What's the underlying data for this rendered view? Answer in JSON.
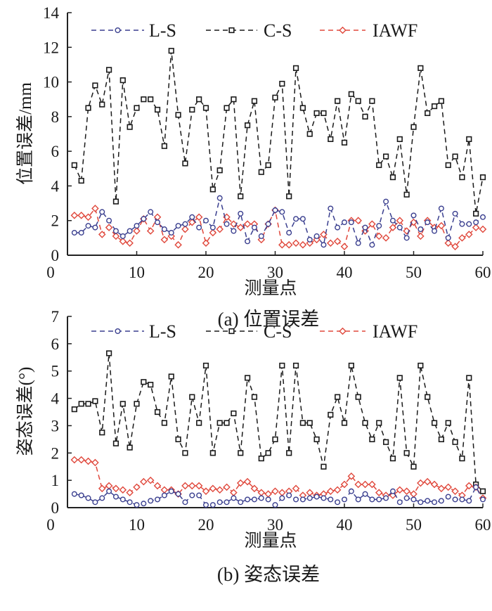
{
  "chart_data": [
    {
      "type": "line",
      "caption": "(a) 位置误差",
      "xlabel": "测量点",
      "ylabel": "位置误差/mm",
      "xlim": [
        0,
        60
      ],
      "ylim": [
        0,
        14
      ],
      "xticks": [
        0,
        10,
        20,
        30,
        40,
        50,
        60
      ],
      "yticks": [
        0,
        2,
        4,
        6,
        8,
        10,
        12,
        14
      ],
      "grid": false,
      "legend": "top",
      "x": [
        1,
        2,
        3,
        4,
        5,
        6,
        7,
        8,
        9,
        10,
        11,
        12,
        13,
        14,
        15,
        16,
        17,
        18,
        19,
        20,
        21,
        22,
        23,
        24,
        25,
        26,
        27,
        28,
        29,
        30,
        31,
        32,
        33,
        34,
        35,
        36,
        37,
        38,
        39,
        40,
        41,
        42,
        43,
        44,
        45,
        46,
        47,
        48,
        49,
        50,
        51,
        52,
        53,
        54,
        55,
        56,
        57,
        58,
        59,
        60
      ],
      "series": [
        {
          "name": "L-S",
          "color": "#3a3f8f",
          "marker": "circle",
          "values": [
            1.3,
            1.3,
            1.7,
            1.6,
            2.5,
            2.0,
            1.4,
            1.1,
            1.4,
            1.7,
            2.1,
            2.5,
            1.9,
            1.5,
            1.3,
            1.7,
            1.8,
            2.2,
            1.6,
            2.0,
            1.6,
            3.3,
            1.8,
            1.4,
            2.4,
            0.8,
            1.6,
            1.1,
            1.8,
            2.6,
            2.5,
            1.3,
            2.1,
            2.1,
            0.9,
            1.1,
            0.6,
            2.7,
            1.6,
            1.9,
            1.9,
            0.7,
            1.6,
            0.6,
            1.7,
            3.1,
            2.0,
            1.6,
            1.0,
            2.3,
            1.5,
            1.9,
            1.4,
            2.7,
            1.0,
            2.4,
            1.8,
            1.8,
            1.9,
            2.2
          ]
        },
        {
          "name": "C-S",
          "color": "#1a1a1a",
          "marker": "square",
          "values": [
            5.2,
            4.3,
            8.5,
            9.8,
            8.7,
            10.7,
            3.1,
            10.1,
            7.4,
            8.5,
            9.0,
            9.0,
            8.4,
            6.3,
            11.8,
            8.1,
            5.3,
            8.4,
            9.0,
            8.5,
            3.8,
            4.9,
            8.5,
            9.0,
            3.4,
            7.5,
            8.9,
            4.8,
            5.2,
            9.1,
            9.9,
            3.4,
            10.8,
            8.5,
            7.0,
            8.2,
            8.2,
            6.7,
            8.9,
            6.5,
            9.3,
            8.9,
            8.0,
            8.9,
            5.2,
            5.7,
            4.5,
            6.7,
            3.5,
            7.4,
            10.8,
            8.2,
            8.6,
            8.9,
            5.2,
            5.7,
            4.5,
            6.7,
            2.4,
            4.5
          ]
        },
        {
          "name": "IAWF",
          "color": "#e0483c",
          "marker": "diamond",
          "values": [
            2.3,
            2.3,
            2.2,
            2.7,
            1.2,
            1.6,
            1.1,
            0.8,
            0.7,
            1.4,
            2.1,
            1.4,
            2.2,
            0.9,
            1.1,
            0.6,
            1.5,
            1.9,
            2.2,
            0.7,
            1.3,
            1.5,
            2.2,
            1.8,
            1.6,
            1.8,
            1.8,
            0.9,
            1.8,
            2.6,
            0.6,
            0.6,
            0.7,
            0.6,
            0.7,
            0.9,
            1.2,
            0.7,
            0.8,
            0.5,
            2.0,
            2.0,
            1.4,
            1.8,
            1.1,
            1.0,
            1.6,
            2.0,
            1.4,
            1.9,
            1.1,
            2.0,
            1.6,
            1.7,
            0.7,
            0.5,
            1.0,
            1.2,
            1.6,
            1.5
          ]
        }
      ]
    },
    {
      "type": "line",
      "caption": "(b) 姿态误差",
      "xlabel": "测量点",
      "ylabel": "姿态误差(°)",
      "xlim": [
        0,
        60
      ],
      "ylim": [
        0,
        7
      ],
      "xticks": [
        0,
        10,
        20,
        30,
        40,
        50,
        60
      ],
      "yticks": [
        0,
        1,
        2,
        3,
        4,
        5,
        6,
        7
      ],
      "grid": false,
      "legend": "top",
      "x": [
        1,
        2,
        3,
        4,
        5,
        6,
        7,
        8,
        9,
        10,
        11,
        12,
        13,
        14,
        15,
        16,
        17,
        18,
        19,
        20,
        21,
        22,
        23,
        24,
        25,
        26,
        27,
        28,
        29,
        30,
        31,
        32,
        33,
        34,
        35,
        36,
        37,
        38,
        39,
        40,
        41,
        42,
        43,
        44,
        45,
        46,
        47,
        48,
        49,
        50,
        51,
        52,
        53,
        54,
        55,
        56,
        57,
        58,
        59,
        60
      ],
      "series": [
        {
          "name": "L-S",
          "color": "#3a3f8f",
          "marker": "circle",
          "values": [
            0.5,
            0.45,
            0.35,
            0.2,
            0.35,
            0.6,
            0.4,
            0.3,
            0.2,
            0.1,
            0.15,
            0.25,
            0.3,
            0.45,
            0.6,
            0.5,
            0.2,
            0.45,
            0.45,
            0.1,
            0.1,
            0.2,
            0.2,
            0.35,
            0.2,
            0.3,
            0.3,
            0.35,
            0.3,
            0.1,
            0.35,
            0.45,
            0.3,
            0.3,
            0.35,
            0.4,
            0.35,
            0.3,
            0.2,
            0.3,
            0.6,
            0.3,
            0.5,
            0.3,
            0.3,
            0.35,
            0.6,
            0.2,
            0.35,
            0.3,
            0.2,
            0.25,
            0.2,
            0.25,
            0.4,
            0.3,
            0.3,
            0.25,
            0.75,
            0.3
          ]
        },
        {
          "name": "C-S",
          "color": "#1a1a1a",
          "marker": "square",
          "values": [
            3.6,
            3.8,
            3.8,
            3.9,
            2.75,
            5.65,
            2.35,
            3.8,
            2.2,
            3.8,
            4.6,
            4.5,
            3.5,
            3.1,
            4.8,
            2.5,
            2.0,
            4.05,
            3.1,
            5.2,
            2.0,
            3.1,
            3.1,
            3.45,
            2.0,
            4.75,
            4.05,
            1.8,
            2.0,
            2.5,
            5.2,
            2.0,
            5.2,
            3.1,
            3.1,
            2.5,
            1.5,
            3.4,
            4.05,
            3.1,
            5.2,
            4.05,
            3.1,
            2.5,
            3.1,
            2.4,
            1.8,
            4.75,
            2.0,
            1.5,
            5.2,
            4.05,
            3.1,
            2.5,
            3.1,
            2.4,
            1.8,
            4.75,
            0.85,
            0.6
          ]
        },
        {
          "name": "IAWF",
          "color": "#e0483c",
          "marker": "diamond",
          "values": [
            1.75,
            1.75,
            1.7,
            1.65,
            0.7,
            0.8,
            0.7,
            0.65,
            0.55,
            0.75,
            0.95,
            1.0,
            0.8,
            0.65,
            0.65,
            0.5,
            0.8,
            0.8,
            0.8,
            0.6,
            0.7,
            0.65,
            0.75,
            0.55,
            0.9,
            0.95,
            0.7,
            0.55,
            0.5,
            0.6,
            0.55,
            0.6,
            0.7,
            0.45,
            0.55,
            0.45,
            0.5,
            0.6,
            0.65,
            0.85,
            1.15,
            0.85,
            0.85,
            0.85,
            0.55,
            0.45,
            0.45,
            0.65,
            0.6,
            0.5,
            0.9,
            0.95,
            0.85,
            0.7,
            0.75,
            0.6,
            0.45,
            0.8,
            0.75,
            0.35
          ]
        }
      ]
    }
  ]
}
